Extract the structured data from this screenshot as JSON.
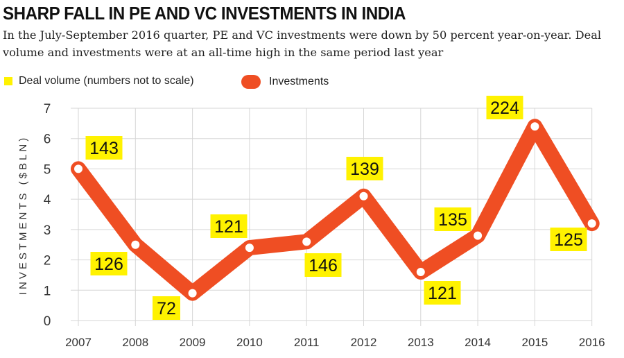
{
  "title": "SHARP FALL IN PE AND VC INVESTMENTS IN INDIA",
  "subtitle": "In the July-September 2016 quarter, PE and VC investments were down by 50 percent year-on-year. Deal volume and investments were at an all-time high in the same period last year",
  "legend": [
    {
      "label": "Deal volume (numbers not to scale)",
      "color": "#fff200"
    },
    {
      "label": "Investments",
      "color": "#ef4e23"
    }
  ],
  "chart_data": {
    "type": "line",
    "ylabel": "INVESTMENTS ($BLN)",
    "xlabel": "",
    "ylim": [
      0,
      7
    ],
    "yticks": [
      "0",
      "1",
      "2",
      "3",
      "4",
      "5",
      "6",
      "7"
    ],
    "categories": [
      "2007",
      "2008",
      "2009",
      "2010",
      "2011",
      "2012",
      "2013",
      "2014",
      "2015",
      "2016"
    ],
    "series": [
      {
        "name": "Investments",
        "values": [
          5.0,
          2.5,
          0.9,
          2.4,
          2.6,
          4.1,
          1.6,
          2.8,
          6.4,
          3.2
        ],
        "color": "#ef4e23"
      }
    ],
    "deal_volume": {
      "name": "Deal volume (numbers not to scale)",
      "labels": [
        "143",
        "126",
        "72",
        "121",
        "146",
        "139",
        "121",
        "135",
        "224",
        "125"
      ],
      "color": "#fff200"
    },
    "grid": true
  }
}
